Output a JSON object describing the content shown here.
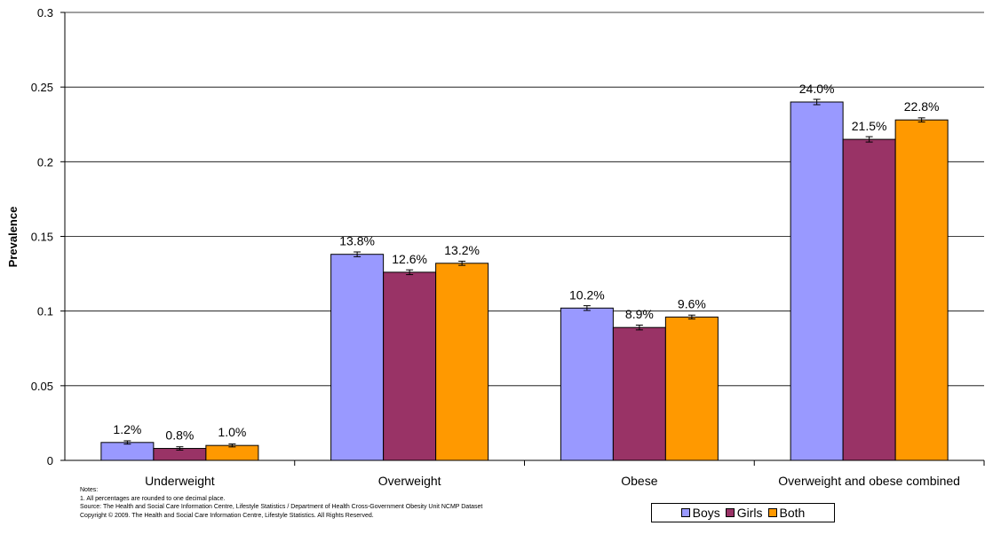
{
  "chart_data": {
    "type": "bar",
    "ylabel": "Prevalence",
    "xlabel": "",
    "ylim": [
      0,
      0.3
    ],
    "yticks": [
      "0",
      "0.05",
      "0.1",
      "0.15",
      "0.2",
      "0.25",
      "0.3"
    ],
    "ytick_values": [
      0,
      0.05,
      0.1,
      0.15,
      0.2,
      0.25,
      0.3
    ],
    "grid": true,
    "legend_position": "bottom-right",
    "categories": [
      "Underweight",
      "Overweight",
      "Obese",
      "Overweight and obese combined"
    ],
    "series": [
      {
        "name": "Boys",
        "color": "#9999FF",
        "values": [
          0.012,
          0.138,
          0.102,
          0.24
        ],
        "labels": [
          "1.2%",
          "13.8%",
          "10.2%",
          "24.0%"
        ],
        "error": [
          0.0005,
          0.001,
          0.001,
          0.0012
        ]
      },
      {
        "name": "Girls",
        "color": "#993366",
        "values": [
          0.008,
          0.126,
          0.089,
          0.215
        ],
        "labels": [
          "0.8%",
          "12.6%",
          "8.9%",
          "21.5%"
        ],
        "error": [
          0.0005,
          0.001,
          0.001,
          0.0012
        ]
      },
      {
        "name": "Both",
        "color": "#FF9900",
        "values": [
          0.01,
          0.132,
          0.096,
          0.228
        ],
        "labels": [
          "1.0%",
          "13.2%",
          "9.6%",
          "22.8%"
        ],
        "error": [
          0.0004,
          0.0008,
          0.0007,
          0.0008
        ]
      }
    ]
  },
  "notes": [
    "Notes:",
    "1. All percentages are rounded to one decimal place.",
    "Source: The Health and Social Care Information Centre, Lifestyle Statistics / Department of Health Cross-Government Obesity Unit NCMP Dataset",
    "Copyright © 2009. The Health and Social Care Information Centre, Lifestyle Statistics. All Rights Reserved."
  ]
}
